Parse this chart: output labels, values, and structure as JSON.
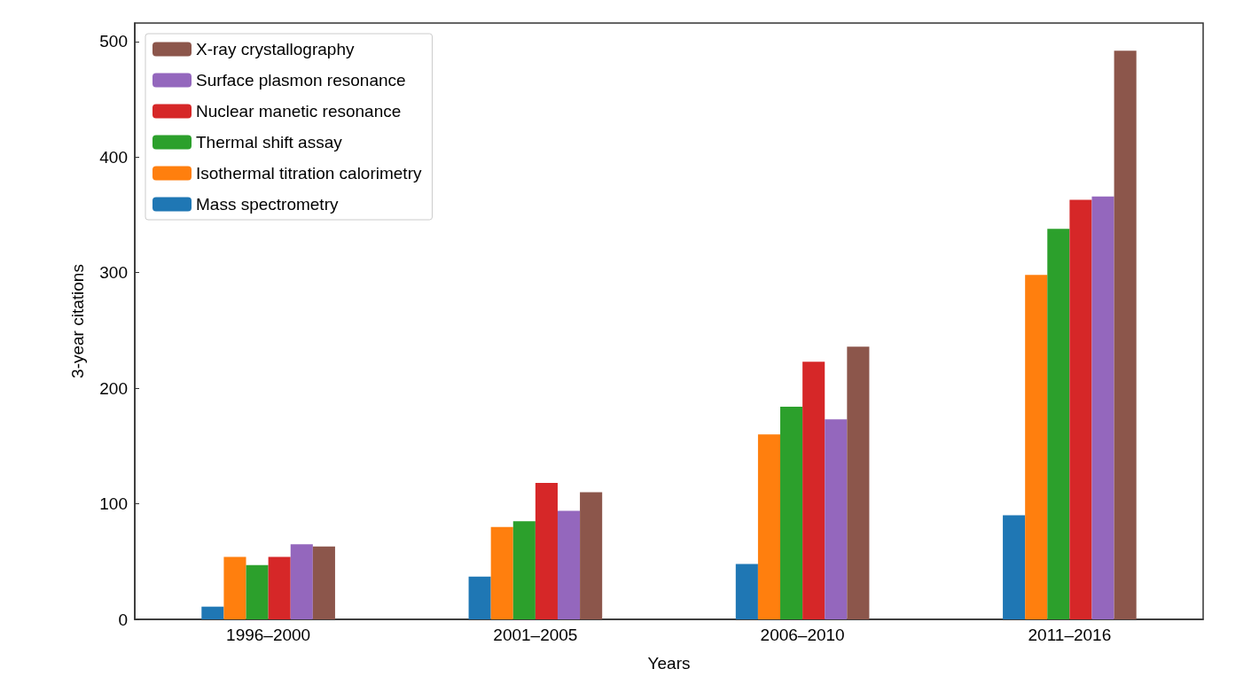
{
  "chart_data": {
    "type": "bar",
    "xlabel": "Years",
    "ylabel": "3-year citations",
    "categories": [
      "1996–2000",
      "2001–2005",
      "2006–2010",
      "2011–2016"
    ],
    "series": [
      {
        "name": "Mass spectrometry",
        "color": "#1f77b4",
        "values": [
          11,
          37,
          48,
          90
        ]
      },
      {
        "name": "Isothermal titration calorimetry",
        "color": "#ff7f0e",
        "values": [
          54,
          80,
          160,
          298
        ]
      },
      {
        "name": "Thermal shift assay",
        "color": "#2ca02c",
        "values": [
          47,
          85,
          184,
          338
        ]
      },
      {
        "name": "Nuclear manetic resonance",
        "color": "#d62728",
        "values": [
          54,
          118,
          223,
          363
        ]
      },
      {
        "name": "Surface plasmon resonance",
        "color": "#9467bd",
        "values": [
          65,
          94,
          173,
          366
        ]
      },
      {
        "name": "X-ray crystallography",
        "color": "#8c564b",
        "values": [
          63,
          110,
          236,
          492
        ]
      }
    ],
    "ylim": [
      0,
      516
    ],
    "yticks": [
      0,
      100,
      200,
      300,
      400,
      500
    ],
    "grid": false,
    "legend": "top left"
  }
}
